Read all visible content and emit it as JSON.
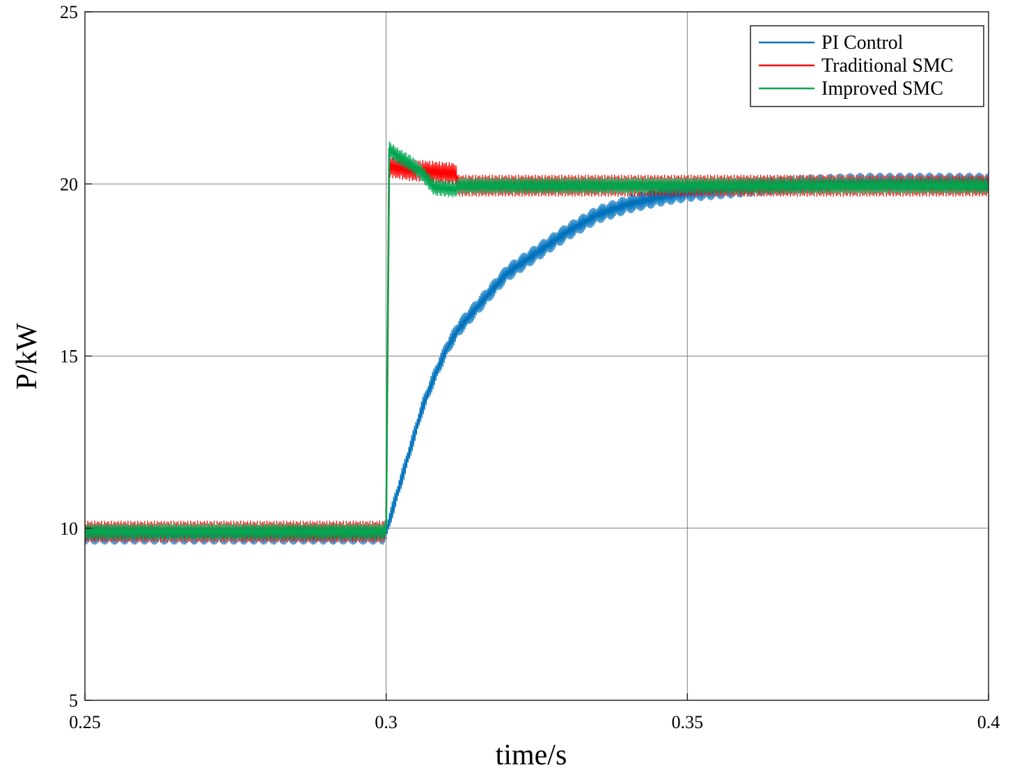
{
  "chart_data": {
    "type": "line",
    "title": "",
    "xlabel": "time/s",
    "ylabel": "P/kW",
    "xlim": [
      0.25,
      0.4
    ],
    "ylim": [
      5,
      25
    ],
    "xticks": [
      0.25,
      0.3,
      0.35,
      0.4
    ],
    "xtick_labels": [
      "0.25",
      "0.3",
      "0.35",
      "0.4"
    ],
    "yticks": [
      5,
      10,
      15,
      20,
      25
    ],
    "ytick_labels": [
      "5",
      "10",
      "15",
      "20",
      "25"
    ],
    "grid": true,
    "legend_position": "top-right",
    "series": [
      {
        "name": "PI Control",
        "color": "#0072BD",
        "x": [
          0.25,
          0.2995,
          0.3,
          0.302,
          0.304,
          0.306,
          0.308,
          0.31,
          0.312,
          0.315,
          0.318,
          0.32,
          0.325,
          0.33,
          0.335,
          0.34,
          0.345,
          0.35,
          0.36,
          0.37,
          0.38,
          0.39,
          0.4
        ],
        "y": [
          9.8,
          9.8,
          9.9,
          11.1,
          12.3,
          13.5,
          14.4,
          15.2,
          15.8,
          16.4,
          17.0,
          17.4,
          18.0,
          18.6,
          19.1,
          19.4,
          19.6,
          19.75,
          19.9,
          20.0,
          20.05,
          20.05,
          20.05
        ]
      },
      {
        "name": "Traditional SMC",
        "color": "#FF0000",
        "x": [
          0.25,
          0.2995,
          0.3,
          0.3005,
          0.304,
          0.308,
          0.3115,
          0.312,
          0.35,
          0.4
        ],
        "y": [
          9.9,
          9.9,
          10.0,
          20.5,
          20.4,
          20.35,
          20.3,
          19.95,
          19.95,
          19.95
        ]
      },
      {
        "name": "Improved SMC",
        "color": "#00A550",
        "x": [
          0.25,
          0.2995,
          0.3,
          0.3005,
          0.302,
          0.304,
          0.306,
          0.308,
          0.3115,
          0.312,
          0.35,
          0.4
        ],
        "y": [
          9.9,
          9.9,
          10.0,
          21.0,
          20.8,
          20.6,
          20.3,
          19.9,
          19.85,
          19.95,
          19.95,
          19.95
        ]
      }
    ]
  }
}
